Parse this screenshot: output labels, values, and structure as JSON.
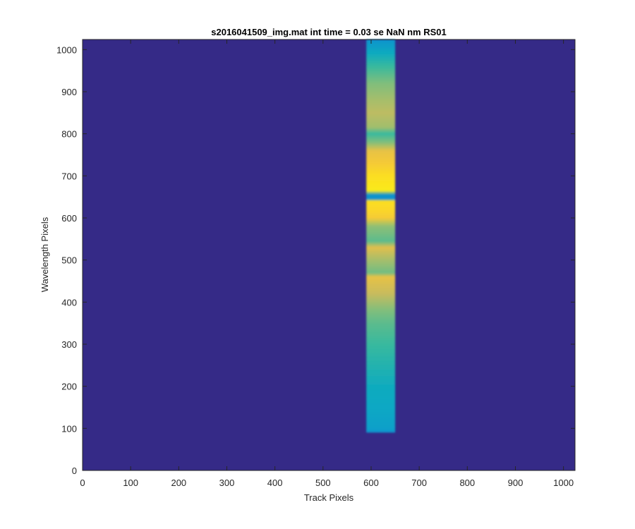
{
  "chart_data": {
    "type": "heatmap",
    "title": "s2016041509_img.mat int time = 0.03 se  NaN nm RS01",
    "xlabel": "Track Pixels",
    "ylabel": "Wavelength Pixels",
    "xlim": [
      0,
      1024
    ],
    "ylim": [
      0,
      1024
    ],
    "xticks": [
      0,
      100,
      200,
      300,
      400,
      500,
      600,
      700,
      800,
      900,
      1000
    ],
    "yticks": [
      0,
      100,
      200,
      300,
      400,
      500,
      600,
      700,
      800,
      900,
      1000
    ],
    "grid": false,
    "colormap": "parula",
    "background_value": 0,
    "track_band": {
      "x_start": 590,
      "x_end": 650
    },
    "wavelength_band": {
      "y_start": 90,
      "y_end": 1024
    },
    "intensity_profile": [
      {
        "y": 90,
        "value": 0.3
      },
      {
        "y": 100,
        "value": 0.35
      },
      {
        "y": 150,
        "value": 0.38
      },
      {
        "y": 200,
        "value": 0.4
      },
      {
        "y": 250,
        "value": 0.45
      },
      {
        "y": 300,
        "value": 0.5
      },
      {
        "y": 350,
        "value": 0.55
      },
      {
        "y": 380,
        "value": 0.6
      },
      {
        "y": 420,
        "value": 0.72
      },
      {
        "y": 460,
        "value": 0.8
      },
      {
        "y": 470,
        "value": 0.58
      },
      {
        "y": 500,
        "value": 0.66
      },
      {
        "y": 530,
        "value": 0.78
      },
      {
        "y": 545,
        "value": 0.55
      },
      {
        "y": 580,
        "value": 0.62
      },
      {
        "y": 600,
        "value": 0.85
      },
      {
        "y": 620,
        "value": 0.9
      },
      {
        "y": 640,
        "value": 0.92
      },
      {
        "y": 645,
        "value": 0.3
      },
      {
        "y": 655,
        "value": 0.3
      },
      {
        "y": 665,
        "value": 0.95
      },
      {
        "y": 700,
        "value": 0.92
      },
      {
        "y": 730,
        "value": 0.85
      },
      {
        "y": 760,
        "value": 0.8
      },
      {
        "y": 780,
        "value": 0.6
      },
      {
        "y": 800,
        "value": 0.5
      },
      {
        "y": 815,
        "value": 0.65
      },
      {
        "y": 850,
        "value": 0.7
      },
      {
        "y": 880,
        "value": 0.66
      },
      {
        "y": 920,
        "value": 0.6
      },
      {
        "y": 960,
        "value": 0.5
      },
      {
        "y": 990,
        "value": 0.4
      },
      {
        "y": 1024,
        "value": 0.3
      }
    ],
    "colors": {
      "background": "#352a87",
      "stops": [
        "#352a87",
        "#0363e1",
        "#1485d4",
        "#06a7c6",
        "#38b99e",
        "#92bf73",
        "#d9ba56",
        "#fcce2e",
        "#f9fb0e"
      ]
    }
  }
}
